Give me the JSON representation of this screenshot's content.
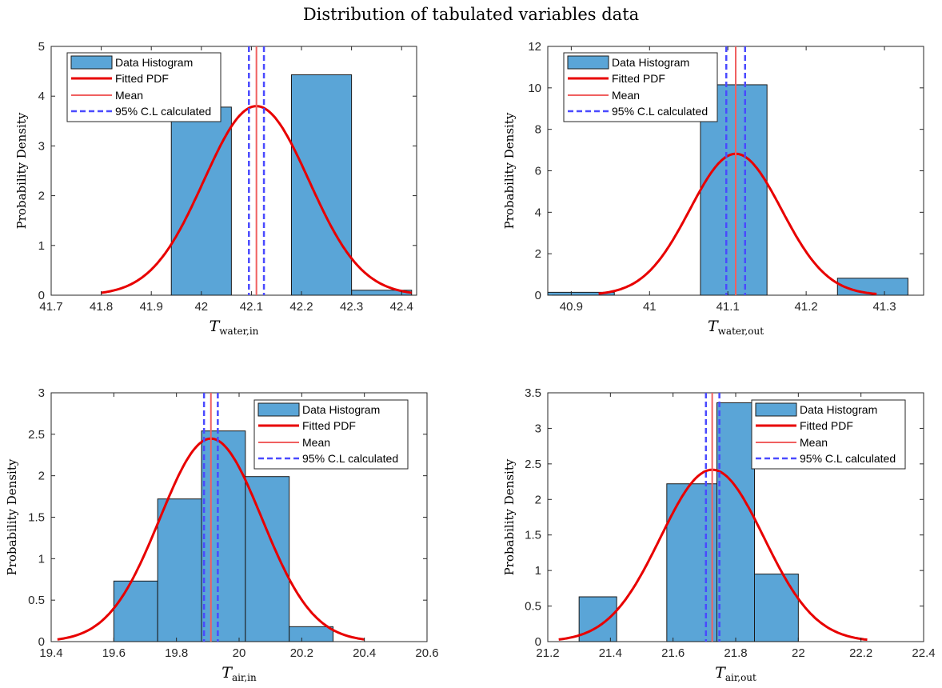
{
  "figure": {
    "title": "Distribution of tabulated variables data"
  },
  "legend_labels": [
    "Data Histogram",
    "Fitted PDF",
    "Mean",
    "95% C.L calculated"
  ],
  "colors": {
    "bar_fill": "#5aa5d7",
    "bar_edge": "#1a1a1a",
    "pdf": "#e80000",
    "mean": "#f06060",
    "ci": "#4a4aff"
  },
  "chart_data": [
    {
      "type": "bar",
      "xlabel_main": "T",
      "xlabel_sub": "water,in",
      "ylabel": "Probability Density",
      "xlim": [
        41.7,
        42.43
      ],
      "ylim": [
        0,
        5
      ],
      "xticks": [
        41.7,
        41.8,
        41.9,
        42,
        42.1,
        42.2,
        42.3,
        42.4
      ],
      "xticklabels": [
        "41.7",
        "41.8",
        "41.9",
        "42",
        "42.1",
        "42.2",
        "42.3",
        "42.4"
      ],
      "yticks": [
        0,
        1,
        2,
        3,
        4,
        5
      ],
      "yticklabels": [
        "0",
        "1",
        "2",
        "3",
        "4",
        "5"
      ],
      "bins": [
        {
          "x0": 41.94,
          "x1": 42.06,
          "height": 3.78
        },
        {
          "x0": 42.18,
          "x1": 42.3,
          "height": 4.43
        },
        {
          "x0": 42.3,
          "x1": 42.42,
          "height": 0.1
        }
      ],
      "pdf": {
        "mean": 42.11,
        "sd": 0.105,
        "x_start": 41.8,
        "x_end": 42.42
      },
      "mean": 42.11,
      "ci": [
        42.095,
        42.125
      ],
      "legend_position": "top-left"
    },
    {
      "type": "bar",
      "xlabel_main": "T",
      "xlabel_sub": "water,out",
      "ylabel": "Probability Density",
      "xlim": [
        40.87,
        41.35
      ],
      "ylim": [
        0,
        12
      ],
      "xticks": [
        40.9,
        41,
        41.1,
        41.2,
        41.3
      ],
      "xticklabels": [
        "40.9",
        "41",
        "41.1",
        "41.2",
        "41.3"
      ],
      "yticks": [
        0,
        2,
        4,
        6,
        8,
        10,
        12
      ],
      "yticklabels": [
        "0",
        "2",
        "4",
        "6",
        "8",
        "10",
        "12"
      ],
      "bins": [
        {
          "x0": 40.87,
          "x1": 40.955,
          "height": 0.14
        },
        {
          "x0": 41.065,
          "x1": 41.15,
          "height": 10.15
        },
        {
          "x0": 41.24,
          "x1": 41.33,
          "height": 0.82
        }
      ],
      "pdf": {
        "mean": 41.11,
        "sd": 0.0585,
        "x_start": 40.935,
        "x_end": 41.29
      },
      "mean": 41.11,
      "ci": [
        41.098,
        41.122
      ],
      "legend_position": "top-left"
    },
    {
      "type": "bar",
      "xlabel_main": "T",
      "xlabel_sub": "air,in",
      "ylabel": "Probability Density",
      "xlim": [
        19.4,
        20.6
      ],
      "ylim": [
        0,
        3
      ],
      "xticks": [
        19.4,
        19.6,
        19.8,
        20,
        20.2,
        20.4,
        20.6
      ],
      "xticklabels": [
        "19.4",
        "19.6",
        "19.8",
        "20",
        "20.2",
        "20.4",
        "20.6"
      ],
      "yticks": [
        0,
        0.5,
        1,
        1.5,
        2,
        2.5,
        3
      ],
      "yticklabels": [
        "0",
        "0.5",
        "1",
        "1.5",
        "2",
        "2.5",
        "3"
      ],
      "bins": [
        {
          "x0": 19.6,
          "x1": 19.74,
          "height": 0.73
        },
        {
          "x0": 19.74,
          "x1": 19.88,
          "height": 1.72
        },
        {
          "x0": 19.88,
          "x1": 20.02,
          "height": 2.54
        },
        {
          "x0": 20.02,
          "x1": 20.16,
          "height": 1.99
        },
        {
          "x0": 20.16,
          "x1": 20.3,
          "height": 0.18
        }
      ],
      "pdf": {
        "mean": 19.91,
        "sd": 0.163,
        "x_start": 19.42,
        "x_end": 20.4
      },
      "mean": 19.91,
      "ci": [
        19.888,
        19.932
      ],
      "legend_position": "top-right"
    },
    {
      "type": "bar",
      "xlabel_main": "T",
      "xlabel_sub": "air,out",
      "ylabel": "Probability Density",
      "xlim": [
        21.2,
        22.4
      ],
      "ylim": [
        0,
        3.5
      ],
      "xticks": [
        21.2,
        21.4,
        21.6,
        21.8,
        22,
        22.2,
        22.4
      ],
      "xticklabels": [
        "21.2",
        "21.4",
        "21.6",
        "21.8",
        "22",
        "22.2",
        "22.4"
      ],
      "yticks": [
        0,
        0.5,
        1,
        1.5,
        2,
        2.5,
        3,
        3.5
      ],
      "yticklabels": [
        "0",
        "0.5",
        "1",
        "1.5",
        "2",
        "2.5",
        "3",
        "3.5"
      ],
      "bins": [
        {
          "x0": 21.3,
          "x1": 21.42,
          "height": 0.63
        },
        {
          "x0": 21.58,
          "x1": 21.74,
          "height": 2.22
        },
        {
          "x0": 21.74,
          "x1": 21.86,
          "height": 3.36
        },
        {
          "x0": 21.86,
          "x1": 22.0,
          "height": 0.95
        }
      ],
      "pdf": {
        "mean": 21.725,
        "sd": 0.165,
        "x_start": 21.235,
        "x_end": 22.22
      },
      "mean": 21.725,
      "ci": [
        21.705,
        21.748
      ],
      "legend_position": "top-right"
    }
  ]
}
